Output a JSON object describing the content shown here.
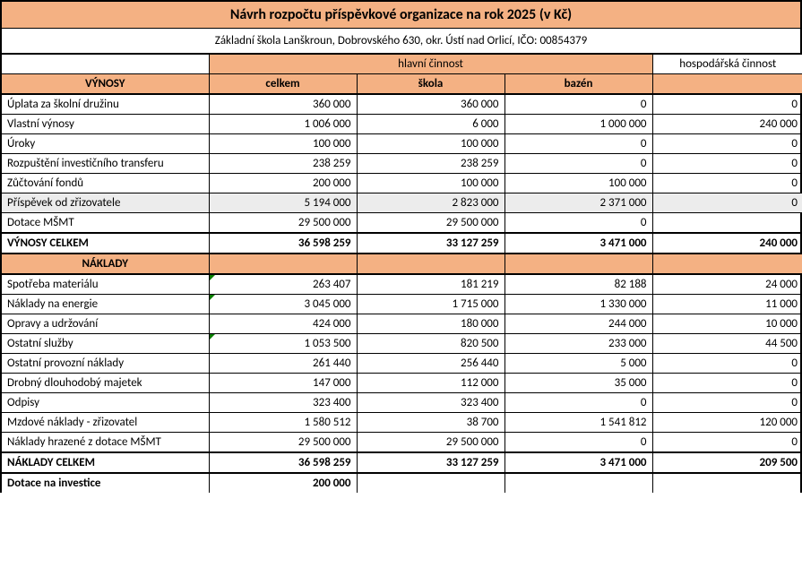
{
  "title": "Návrh rozpočtu příspěvkové organizace na rok 2025 (v Kč)",
  "subtitle": "Základní škola Lanškroun, Dobrovského 630, okr. Ústí nad Orlicí, IČO: 00854379",
  "colors": {
    "header_bg": "#f4b183",
    "shade_bg": "#ececec",
    "border": "#000000",
    "marker": "#0a7d00"
  },
  "columns": {
    "group_main": "hlavní činnost",
    "group_other": "hospodářská činnost",
    "label_revenues": "VÝNOSY",
    "label_costs": "NÁKLADY",
    "celkem": "celkem",
    "skola": "škola",
    "bazen": "bazén"
  },
  "revenues": [
    {
      "label": "Úplata za školní družinu",
      "celkem": "360 000",
      "skola": "360 000",
      "bazen": "0",
      "hosp": "0"
    },
    {
      "label": "Vlastní výnosy",
      "celkem": "1 006 000",
      "skola": "6 000",
      "bazen": "1 000 000",
      "hosp": "240 000"
    },
    {
      "label": "Úroky",
      "celkem": "100 000",
      "skola": "100 000",
      "bazen": "0",
      "hosp": "0"
    },
    {
      "label": "Rozpuštění investičního transferu",
      "celkem": "238 259",
      "skola": "238 259",
      "bazen": "0",
      "hosp": "0"
    },
    {
      "label": "Zůčtování fondů",
      "celkem": "200 000",
      "skola": "100 000",
      "bazen": "100 000",
      "hosp": "0"
    },
    {
      "label": "Příspěvek od zřizovatele",
      "celkem": "5 194 000",
      "skola": "2 823 000",
      "bazen": "2 371 000",
      "hosp": "0",
      "shade": true
    },
    {
      "label": "Dotace MŠMT",
      "celkem": "29 500 000",
      "skola": "29 500 000",
      "bazen": "0",
      "hosp": ""
    }
  ],
  "revenues_total": {
    "label": "VÝNOSY CELKEM",
    "celkem": "36 598 259",
    "skola": "33 127 259",
    "bazen": "3 471 000",
    "hosp": "240 000"
  },
  "costs": [
    {
      "label": "Spotřeba materiálu",
      "celkem": "263 407",
      "skola": "181 219",
      "bazen": "82 188",
      "hosp": "24 000",
      "mark": true
    },
    {
      "label": "Náklady na energie",
      "celkem": "3 045 000",
      "skola": "1 715 000",
      "bazen": "1 330 000",
      "hosp": "11 000",
      "mark": true
    },
    {
      "label": "Opravy a udržování",
      "celkem": "424 000",
      "skola": "180 000",
      "bazen": "244 000",
      "hosp": "10 000"
    },
    {
      "label": "Ostatní služby",
      "celkem": "1 053 500",
      "skola": "820 500",
      "bazen": "233 000",
      "hosp": "44 500",
      "mark": true
    },
    {
      "label": "Ostatní provozní náklady",
      "celkem": "261 440",
      "skola": "256 440",
      "bazen": "5 000",
      "hosp": "0"
    },
    {
      "label": "Drobný dlouhodobý majetek",
      "celkem": "147 000",
      "skola": "112 000",
      "bazen": "35 000",
      "hosp": "0"
    },
    {
      "label": "Odpisy",
      "celkem": "323 400",
      "skola": "323 400",
      "bazen": "0",
      "hosp": "0"
    },
    {
      "label": "Mzdové náklady - zřizovatel",
      "celkem": "1 580 512",
      "skola": "38 700",
      "bazen": "1 541 812",
      "hosp": "120 000"
    },
    {
      "label": "Náklady hrazené z dotace MŠMT",
      "celkem": "29 500 000",
      "skola": "29 500 000",
      "bazen": "0",
      "hosp": "0"
    }
  ],
  "costs_total": {
    "label": "NÁKLADY  CELKEM",
    "celkem": "36 598 259",
    "skola": "33 127 259",
    "bazen": "3 471 000",
    "hosp": "209 500"
  },
  "investment": {
    "label": "Dotace na investice",
    "celkem": "200 000"
  }
}
